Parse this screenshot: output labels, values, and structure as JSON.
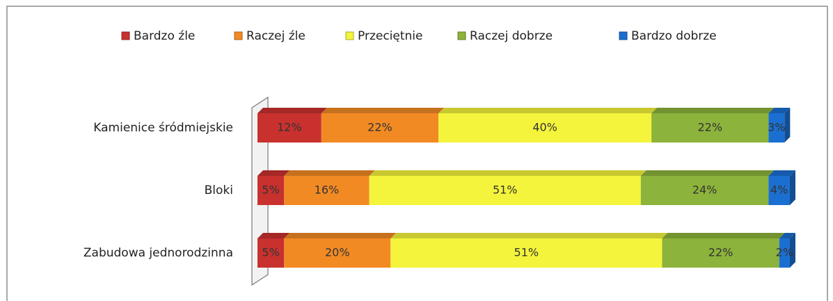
{
  "chart_data": {
    "type": "bar",
    "orientation": "horizontal",
    "stacked": true,
    "legend": "top",
    "categories": [
      "Kamienice śródmiejskie",
      "Bloki",
      "Zabudowa jednorodzinna"
    ],
    "series": [
      {
        "name": "Bardzo źle",
        "color": "#c8312e",
        "values": [
          12,
          5,
          5
        ],
        "value_labels": [
          "12%",
          "5%",
          "5%"
        ]
      },
      {
        "name": "Raczej źle",
        "color": "#f28a24",
        "values": [
          22,
          16,
          20
        ],
        "value_labels": [
          "22%",
          "16%",
          "20%"
        ]
      },
      {
        "name": "Przeciętnie",
        "color": "#f4f43c",
        "values": [
          40,
          51,
          51
        ],
        "value_labels": [
          "40%",
          "51%",
          "51%"
        ]
      },
      {
        "name": "Raczej dobrze",
        "color": "#8cb33b",
        "values": [
          22,
          24,
          22
        ],
        "value_labels": [
          "22%",
          "24%",
          "22%"
        ]
      },
      {
        "name": "Bardzo dobrze",
        "color": "#1b6fd1",
        "values": [
          3,
          4,
          2
        ],
        "value_labels": [
          "3%",
          "4%",
          "2%"
        ]
      }
    ]
  }
}
